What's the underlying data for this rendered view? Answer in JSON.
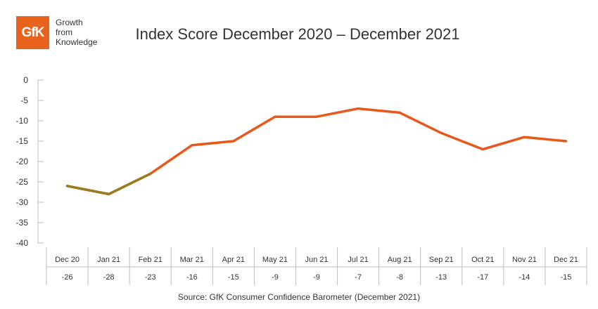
{
  "brand": {
    "logo_text": "GfK",
    "tagline": [
      "Growth",
      "from",
      "Knowledge"
    ],
    "accent_color": "#e8641e"
  },
  "chart_data": {
    "type": "line",
    "title": "Index Score December 2020 – December 2021",
    "categories": [
      "Dec 20",
      "Jan 21",
      "Feb 21",
      "Mar 21",
      "Apr 21",
      "May 21",
      "Jun 21",
      "Jul 21",
      "Aug 21",
      "Sep 21",
      "Oct 21",
      "Nov 21",
      "Dec 21"
    ],
    "values": [
      -26,
      -28,
      -23,
      -16,
      -15,
      -9,
      -9,
      -7,
      -8,
      -13,
      -17,
      -14,
      -15
    ],
    "value_labels": [
      "-26",
      "-28",
      "-23",
      "-16",
      "-15",
      "-9",
      "-9",
      "-7",
      "-8",
      "-13",
      "-17",
      "-14",
      "-15"
    ],
    "ylim": [
      -40,
      0
    ],
    "yticks": [
      0,
      -5,
      -10,
      -15,
      -20,
      -25,
      -30,
      -35,
      -40
    ],
    "ytick_labels": [
      "0",
      "-5",
      "-10",
      "-15",
      "-20",
      "-25",
      "-30",
      "-35",
      "-40"
    ],
    "line_color": "#e8581a",
    "highlight_color": "#9a7a1e",
    "highlight_segment_last_index": 2,
    "grid": false,
    "data_table": true
  },
  "source": "Source: GfK Consumer Confidence Barometer (December 2021)"
}
